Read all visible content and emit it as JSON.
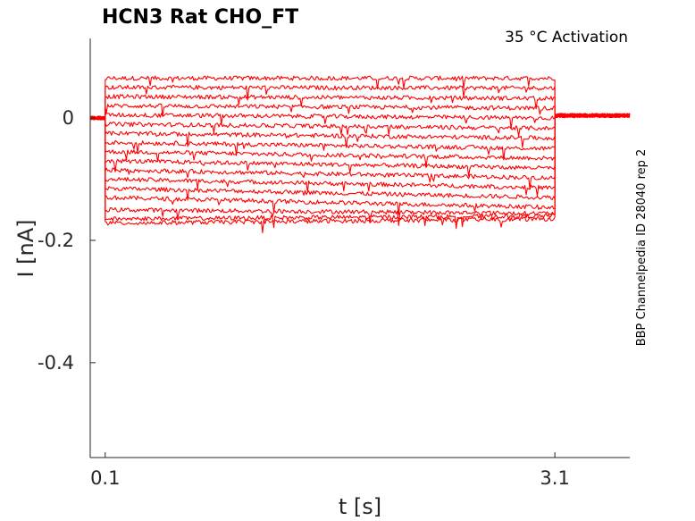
{
  "chart_data": {
    "type": "line",
    "title": "HCN3  Rat  CHO_FT",
    "annotation": "35 °C  Activation",
    "side_label": "BBP Channelpedia ID 28040 rep 2",
    "xlabel": "t [s]",
    "ylabel": "I [nA]",
    "x_ticks": [
      0.1,
      3.1
    ],
    "x_tick_labels": [
      "0.1",
      "3.1"
    ],
    "y_ticks": [
      0,
      -0.2,
      -0.4
    ],
    "y_tick_labels": [
      "0",
      "-0.2",
      "-0.4"
    ],
    "xlim": [
      0.0,
      3.6
    ],
    "ylim": [
      -0.555,
      0.13
    ],
    "grid": false,
    "legend": "none",
    "line_color": "#ff0000",
    "protocol": {
      "step_start": 0.1,
      "step_end": 3.1,
      "holding_current": 0.0,
      "tail_current": 0.004
    },
    "series": [
      {
        "start_level": 0.065,
        "end_level": 0.065
      },
      {
        "start_level": 0.05,
        "end_level": 0.049
      },
      {
        "start_level": 0.035,
        "end_level": 0.032
      },
      {
        "start_level": 0.02,
        "end_level": 0.016
      },
      {
        "start_level": 0.005,
        "end_level": 0.0
      },
      {
        "start_level": -0.01,
        "end_level": -0.017
      },
      {
        "start_level": -0.025,
        "end_level": -0.033
      },
      {
        "start_level": -0.04,
        "end_level": -0.05
      },
      {
        "start_level": -0.055,
        "end_level": -0.066
      },
      {
        "start_level": -0.07,
        "end_level": -0.082
      },
      {
        "start_level": -0.085,
        "end_level": -0.098
      },
      {
        "start_level": -0.1,
        "end_level": -0.114
      },
      {
        "start_level": -0.115,
        "end_level": -0.13
      },
      {
        "start_level": -0.13,
        "end_level": -0.146
      },
      {
        "start_level": -0.15,
        "end_level": -0.156
      },
      {
        "start_level": -0.165,
        "end_level": -0.16
      },
      {
        "start_level": -0.172,
        "end_level": -0.165
      }
    ]
  }
}
